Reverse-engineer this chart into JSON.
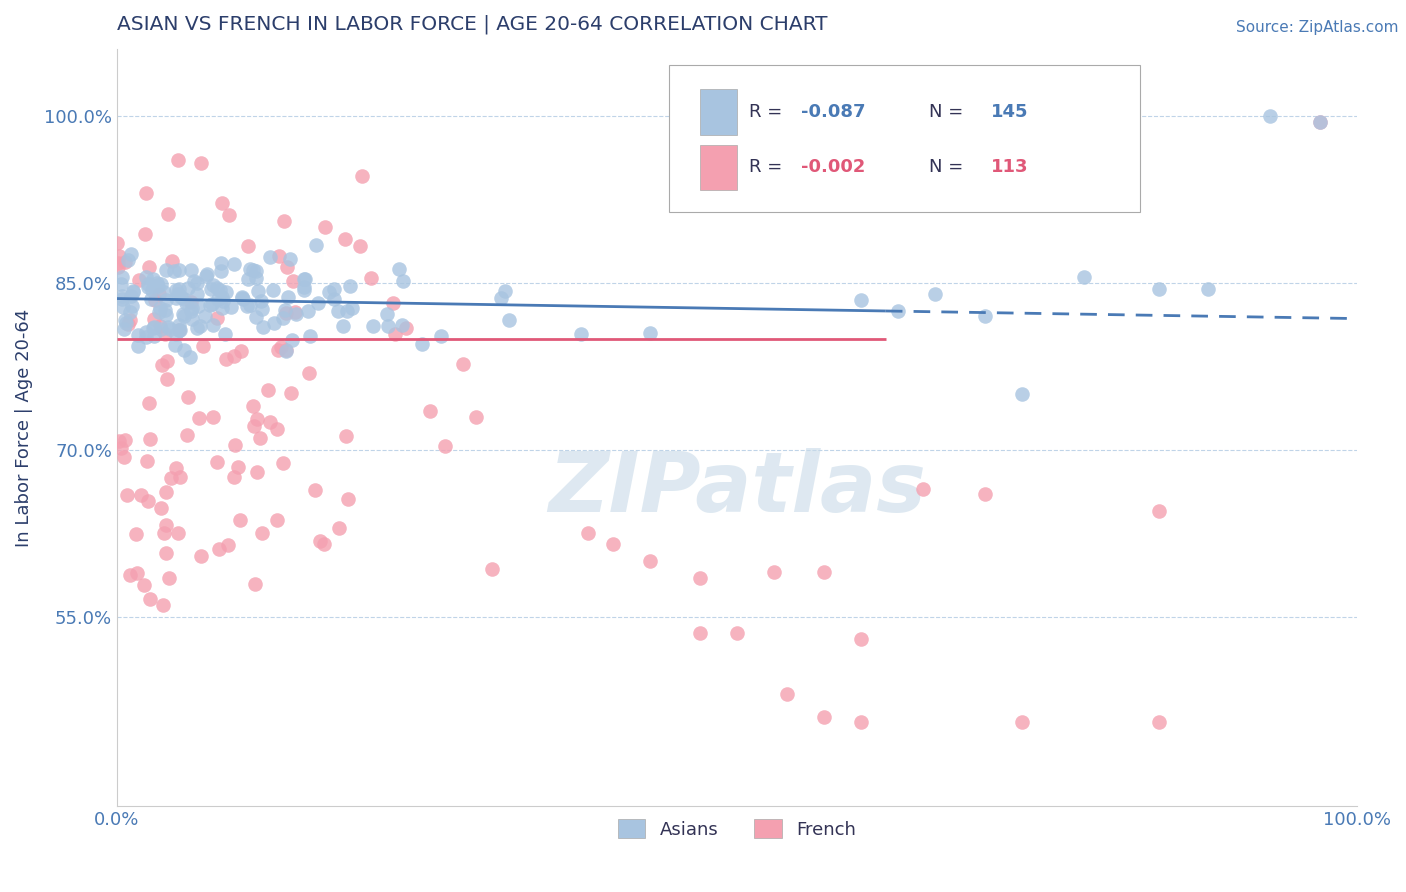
{
  "title": "ASIAN VS FRENCH IN LABOR FORCE | AGE 20-64 CORRELATION CHART",
  "source_text": "Source: ZipAtlas.com",
  "ylabel": "In Labor Force | Age 20-64",
  "xlim": [
    0.0,
    1.0
  ],
  "ylim": [
    0.38,
    1.06
  ],
  "yticks": [
    0.55,
    0.7,
    0.85,
    1.0
  ],
  "ytick_labels": [
    "55.0%",
    "70.0%",
    "85.0%",
    "100.0%"
  ],
  "xtick_labels": [
    "0.0%",
    "100.0%"
  ],
  "xticks": [
    0.0,
    1.0
  ],
  "r_asian": -0.087,
  "n_asian": 145,
  "r_french": -0.002,
  "n_french": 113,
  "asian_color": "#a8c4e0",
  "french_color": "#f4a0b0",
  "trend_asian_color": "#4a7ab5",
  "trend_french_color": "#e05878",
  "grid_color": "#c0d4e8",
  "title_color": "#2c3e6b",
  "axis_label_color": "#2c3e6b",
  "tick_label_color": "#4a7ab5",
  "source_color": "#4a7ab5",
  "background_color": "#ffffff",
  "watermark_text": "ZIPatlas",
  "watermark_color": "#c8dae8",
  "legend_r_n_color": "#4a7ab5"
}
